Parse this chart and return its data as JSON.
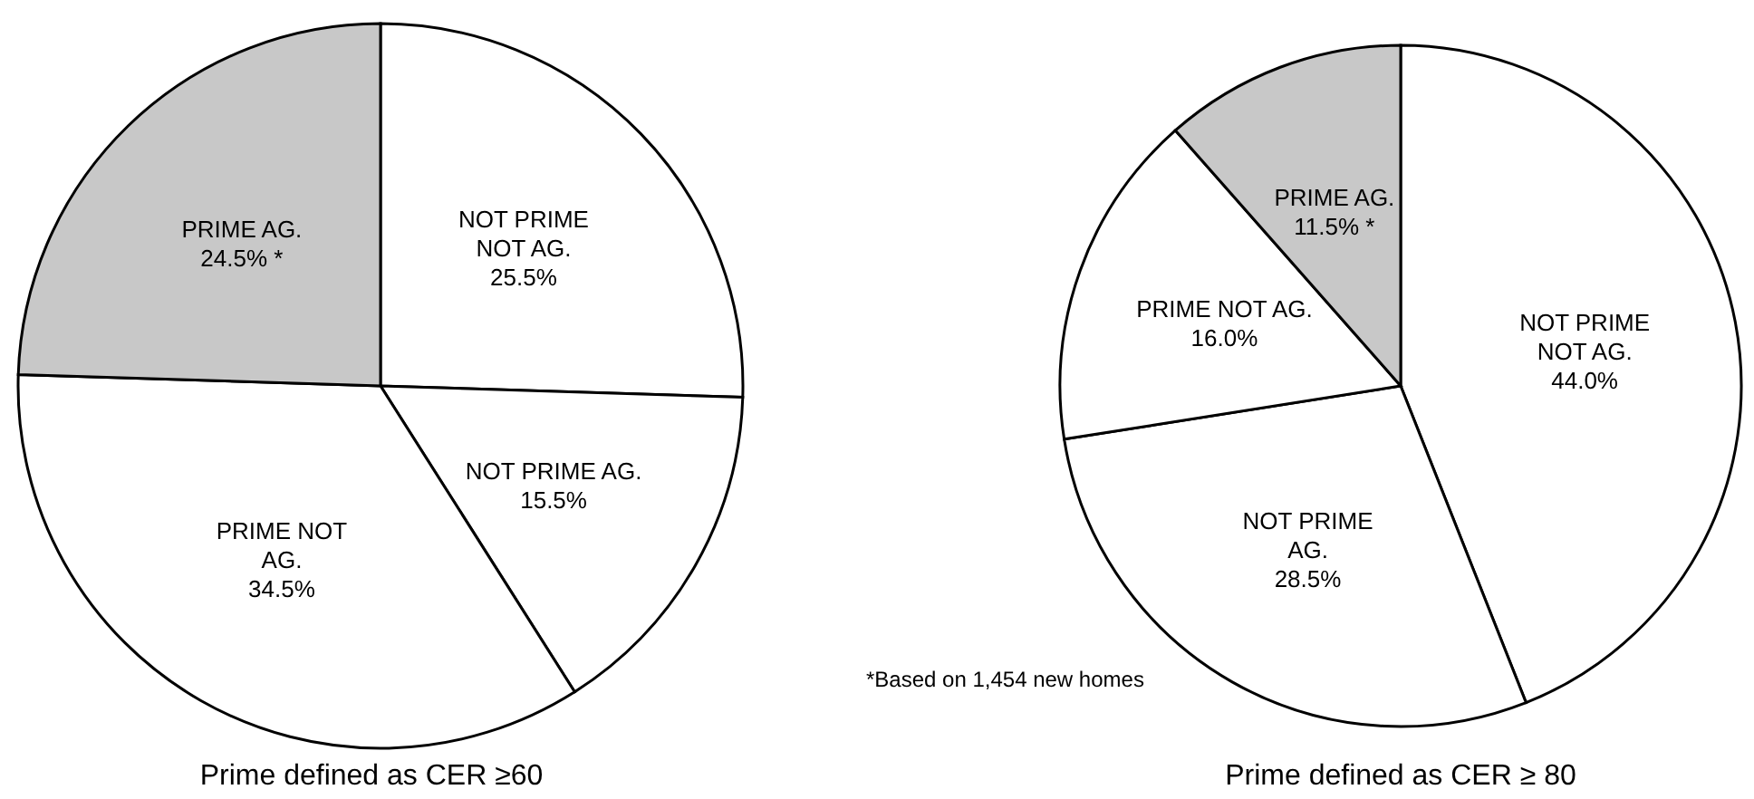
{
  "chart_data": [
    {
      "type": "pie",
      "title": "Prime defined as CER ≥60",
      "categories": [
        "NOT PRIME NOT AG.",
        "NOT PRIME AG.",
        "PRIME NOT AG.",
        "PRIME AG."
      ],
      "values": [
        25.5,
        15.5,
        34.5,
        24.5
      ],
      "colors": [
        "#ffffff",
        "#ffffff",
        "#ffffff",
        "#c8c8c8"
      ],
      "value_labels": [
        "25.5%",
        "15.5%",
        "34.5%",
        "24.5% *"
      ],
      "annotations": [
        "*Based on 1,454 new homes"
      ]
    },
    {
      "type": "pie",
      "title": "Prime defined as CER ≥ 80",
      "categories": [
        "NOT PRIME NOT AG.",
        "NOT PRIME AG.",
        "PRIME NOT AG.",
        "PRIME AG."
      ],
      "values": [
        44.0,
        28.5,
        16.0,
        11.5
      ],
      "colors": [
        "#ffffff",
        "#ffffff",
        "#ffffff",
        "#c8c8c8"
      ],
      "value_labels": [
        "44.0%",
        "28.5%",
        "16.0%",
        "11.5% *"
      ]
    }
  ]
}
